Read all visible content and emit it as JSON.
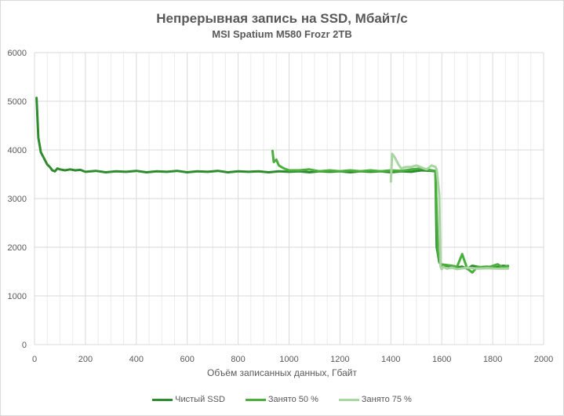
{
  "chart_data": {
    "type": "line",
    "title": "Непрерывная запись на SSD, Мбайт/с",
    "subtitle": "MSI Spatium M580 Frozr 2TB",
    "xlabel": "Объём записанных данных, Гбайт",
    "ylabel": "",
    "xlim": [
      0,
      2000
    ],
    "ylim": [
      0,
      6000
    ],
    "x_ticks": [
      0,
      200,
      400,
      600,
      800,
      1000,
      1200,
      1400,
      1600,
      1800,
      2000
    ],
    "y_ticks": [
      0,
      1000,
      2000,
      3000,
      4000,
      5000,
      6000
    ],
    "grid": true,
    "legend_position": "bottom",
    "series": [
      {
        "name": "Чистый SSD",
        "color": "#2e8b2e",
        "x": [
          8,
          15,
          25,
          35,
          50,
          60,
          70,
          80,
          90,
          100,
          120,
          140,
          160,
          180,
          200,
          240,
          280,
          320,
          360,
          400,
          440,
          480,
          520,
          560,
          600,
          640,
          680,
          720,
          760,
          800,
          840,
          880,
          920,
          960,
          1000,
          1040,
          1080,
          1120,
          1160,
          1200,
          1240,
          1280,
          1320,
          1360,
          1400,
          1440,
          1480,
          1520,
          1560,
          1575,
          1580,
          1590,
          1600,
          1620,
          1650,
          1680,
          1700,
          1720,
          1750,
          1780,
          1810,
          1840,
          1860
        ],
        "y": [
          5070,
          4250,
          3950,
          3850,
          3700,
          3650,
          3580,
          3560,
          3620,
          3600,
          3580,
          3600,
          3580,
          3590,
          3550,
          3570,
          3540,
          3560,
          3550,
          3570,
          3540,
          3560,
          3550,
          3570,
          3540,
          3560,
          3550,
          3570,
          3540,
          3560,
          3550,
          3560,
          3540,
          3560,
          3550,
          3560,
          3540,
          3560,
          3550,
          3560,
          3540,
          3560,
          3550,
          3560,
          3540,
          3560,
          3550,
          3580,
          3570,
          3560,
          2000,
          1700,
          1600,
          1620,
          1580,
          1600,
          1560,
          1620,
          1590,
          1600,
          1580,
          1620,
          1610
        ]
      },
      {
        "name": "Занято 50 %",
        "color": "#4aaf3c",
        "x": [
          935,
          940,
          950,
          960,
          980,
          1000,
          1040,
          1080,
          1120,
          1160,
          1200,
          1240,
          1280,
          1320,
          1360,
          1400,
          1440,
          1480,
          1520,
          1560,
          1575,
          1585,
          1595,
          1610,
          1640,
          1660,
          1680,
          1700,
          1720,
          1740,
          1760,
          1790,
          1820,
          1840,
          1860
        ],
        "y": [
          3980,
          3750,
          3800,
          3680,
          3620,
          3580,
          3580,
          3600,
          3560,
          3580,
          3560,
          3580,
          3560,
          3580,
          3560,
          3580,
          3570,
          3600,
          3620,
          3580,
          3570,
          1900,
          1650,
          1640,
          1620,
          1600,
          1860,
          1560,
          1480,
          1600,
          1580,
          1600,
          1650,
          1580,
          1620
        ]
      },
      {
        "name": "Занято 75 %",
        "color": "#a8d5a0",
        "x": [
          1400,
          1405,
          1415,
          1430,
          1440,
          1460,
          1480,
          1500,
          1520,
          1540,
          1560,
          1575,
          1580,
          1590,
          1595,
          1600,
          1605,
          1620,
          1640,
          1660,
          1700,
          1740,
          1780,
          1820,
          1860
        ],
        "y": [
          3350,
          3920,
          3850,
          3700,
          3620,
          3650,
          3650,
          3680,
          3640,
          3600,
          3680,
          3650,
          3600,
          3080,
          1600,
          1550,
          1600,
          1560,
          1580,
          1550,
          1580,
          1560,
          1570,
          1560,
          1560
        ]
      }
    ]
  },
  "legend": {
    "items": [
      {
        "label": "Чистый SSD",
        "color": "#2e8b2e"
      },
      {
        "label": "Занято 50 %",
        "color": "#4aaf3c"
      },
      {
        "label": "Занято 75 %",
        "color": "#a8d5a0"
      }
    ]
  }
}
